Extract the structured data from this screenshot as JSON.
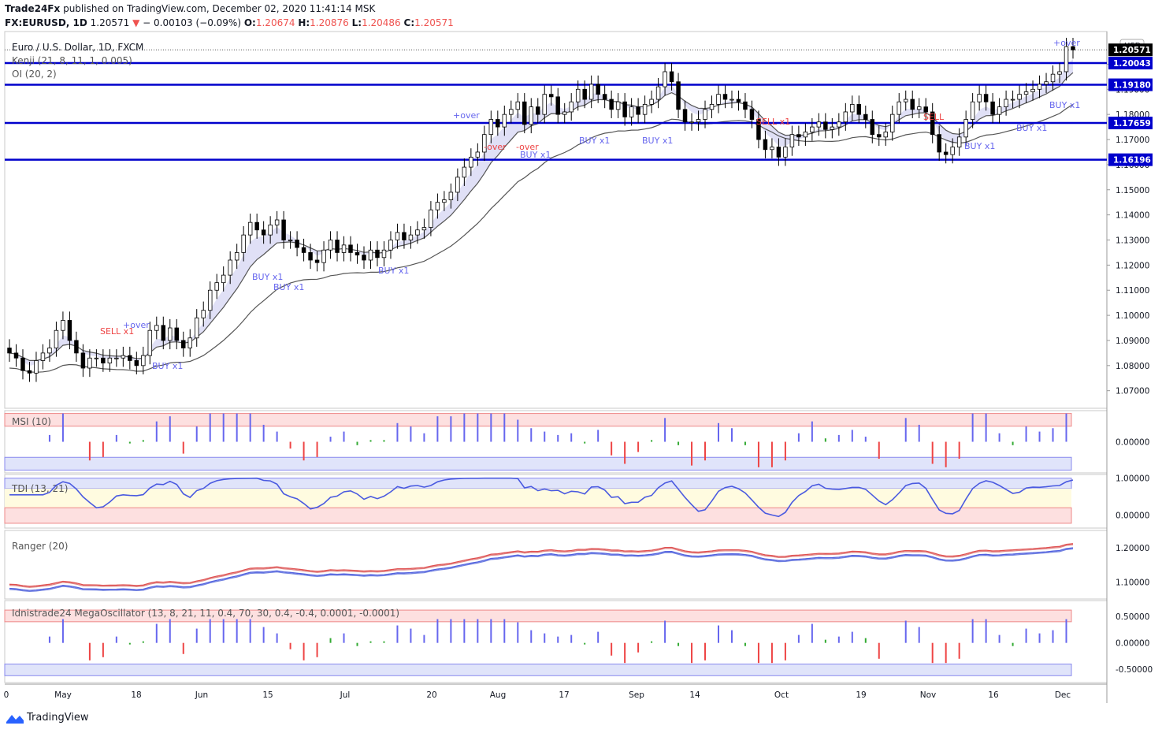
{
  "header": {
    "publisher": "Trade24Fx",
    "published_text": "published on TradingView.com, December 02, 2020 11:41:14 MSK",
    "symbol": "FX:EURUSD, 1D",
    "last": "1.20571",
    "change": "− 0.00103 (−0.09%)",
    "o_label": "O:",
    "o": "1.20674",
    "h_label": "H:",
    "h": "1.20876",
    "l_label": "L:",
    "l": "1.20486",
    "c_label": "C:",
    "c": "1.20571"
  },
  "main_legend": {
    "line1": "Euro / U.S. Dollar, 1D, FXCM",
    "line2": "Kenji (21, 8, 11, 1, 0.005)",
    "line3": "OI (20, 2)"
  },
  "currency_badge": "USD",
  "colors": {
    "up": "#ffffff",
    "down": "#000000",
    "level": "#0000cc",
    "buy": "#6666ee",
    "sell": "#ee4444",
    "accent_label": "#000000"
  },
  "chart_data": {
    "type": "candlestick",
    "timeframe": "1D",
    "ylim": [
      1.063,
      1.213
    ],
    "price_ticks": [
      "1.07000",
      "1.08000",
      "1.09000",
      "1.10000",
      "1.11000",
      "1.12000",
      "1.13000",
      "1.14000",
      "1.15000",
      "1.16000",
      "1.17000",
      "1.18000",
      "1.19000",
      "1.20000"
    ],
    "price_labels": [
      {
        "text": "1.20571",
        "value": 1.20571,
        "style": "dark"
      },
      {
        "text": "1.20043",
        "value": 1.20043,
        "style": "blue"
      },
      {
        "text": "1.19180",
        "value": 1.1918,
        "style": "blue"
      },
      {
        "text": "1.17659",
        "value": 1.17659,
        "style": "blue"
      },
      {
        "text": "1.16196",
        "value": 1.16196,
        "style": "blue"
      }
    ],
    "levels": [
      1.20043,
      1.1918,
      1.17659,
      1.16196
    ],
    "x_ticks": [
      "0",
      "May",
      "18",
      "Jun",
      "15",
      "Jul",
      "20",
      "Aug",
      "17",
      "Sep",
      "14",
      "Oct",
      "19",
      "Nov",
      "16",
      "Dec"
    ],
    "closes": [
      1.085,
      1.083,
      1.078,
      1.077,
      1.082,
      1.085,
      1.087,
      1.094,
      1.098,
      1.09,
      1.085,
      1.079,
      1.083,
      1.083,
      1.081,
      1.083,
      1.083,
      1.084,
      1.082,
      1.08,
      1.084,
      1.094,
      1.096,
      1.09,
      1.095,
      1.09,
      1.087,
      1.091,
      1.099,
      1.102,
      1.11,
      1.113,
      1.116,
      1.122,
      1.125,
      1.132,
      1.137,
      1.134,
      1.132,
      1.136,
      1.138,
      1.13,
      1.13,
      1.127,
      1.125,
      1.122,
      1.121,
      1.126,
      1.13,
      1.125,
      1.128,
      1.125,
      1.124,
      1.122,
      1.126,
      1.123,
      1.126,
      1.13,
      1.133,
      1.13,
      1.132,
      1.134,
      1.135,
      1.142,
      1.145,
      1.146,
      1.149,
      1.155,
      1.159,
      1.163,
      1.165,
      1.172,
      1.178,
      1.175,
      1.18,
      1.182,
      1.185,
      1.176,
      1.183,
      1.18,
      1.188,
      1.187,
      1.18,
      1.181,
      1.185,
      1.19,
      1.186,
      1.192,
      1.188,
      1.186,
      1.182,
      1.185,
      1.179,
      1.183,
      1.18,
      1.184,
      1.186,
      1.191,
      1.197,
      1.193,
      1.182,
      1.177,
      1.177,
      1.178,
      1.182,
      1.184,
      1.188,
      1.186,
      1.186,
      1.185,
      1.182,
      1.178,
      1.17,
      1.166,
      1.167,
      1.163,
      1.167,
      1.172,
      1.171,
      1.173,
      1.175,
      1.177,
      1.174,
      1.175,
      1.177,
      1.181,
      1.184,
      1.18,
      1.178,
      1.172,
      1.171,
      1.173,
      1.18,
      1.185,
      1.186,
      1.182,
      1.183,
      1.181,
      1.172,
      1.165,
      1.164,
      1.167,
      1.171,
      1.178,
      1.185,
      1.188,
      1.185,
      1.18,
      1.183,
      1.186,
      1.186,
      1.188,
      1.189,
      1.19,
      1.192,
      1.193,
      1.196,
      1.197,
      1.207,
      1.2057
    ],
    "msi": {
      "name": "MSI (10)",
      "ylim": [
        -1.1,
        1.1
      ],
      "ticks": [
        "0.00000"
      ]
    },
    "tdi": {
      "name": "TDI (13, 21)",
      "ylim": [
        -0.35,
        1.1
      ],
      "ticks": [
        "1.00000",
        "0.00000"
      ]
    },
    "ranger": {
      "name": "Ranger (20)",
      "ylim": [
        1.05,
        1.25
      ],
      "ticks": [
        "1.20000",
        "1.10000"
      ]
    },
    "mega": {
      "name": "Idnistrade24 MegaOscillator (13, 8, 21, 11, 0.4, 70, 30, 0.4, -0.4, 0.0001, -0.0001)",
      "ylim": [
        -0.75,
        0.8
      ],
      "ticks": [
        "0.50000",
        "0.00000",
        "-0.50000"
      ]
    },
    "annotations": [
      {
        "text": "SELL x1",
        "color": "sell"
      },
      {
        "text": "+over",
        "color": "buy"
      },
      {
        "text": "BUY x1",
        "color": "buy"
      },
      {
        "text": "-over",
        "color": "sell"
      },
      {
        "text": "SELL",
        "color": "sell"
      }
    ]
  },
  "footer": {
    "brand": "TradingView"
  }
}
